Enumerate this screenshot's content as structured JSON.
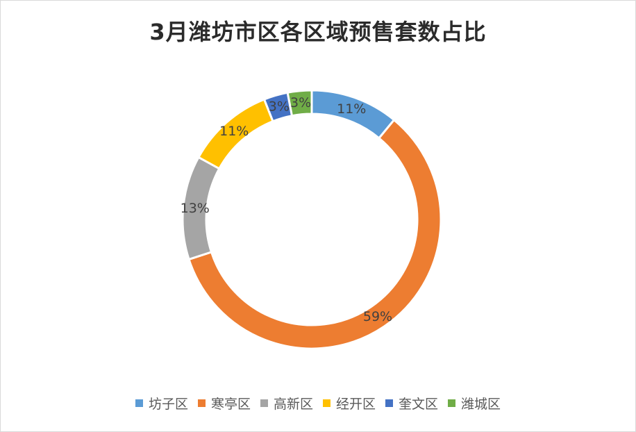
{
  "chart_data": {
    "type": "pie",
    "variant": "doughnut",
    "title": "3月潍坊市区各区域预售套数占比",
    "slices": [
      {
        "name": "坊子区",
        "value": 11,
        "label": "11%",
        "color": "#5b9bd5"
      },
      {
        "name": "寒亭区",
        "value": 59,
        "label": "59%",
        "color": "#ed7d31"
      },
      {
        "name": "高新区",
        "value": 13,
        "label": "13%",
        "color": "#a5a5a5"
      },
      {
        "name": "经开区",
        "value": 11,
        "label": "11%",
        "color": "#ffc000"
      },
      {
        "name": "奎文区",
        "value": 3,
        "label": "3%",
        "color": "#4472c4"
      },
      {
        "name": "潍城区",
        "value": 3,
        "label": "3%",
        "color": "#70ad47"
      }
    ],
    "legend_position": "bottom",
    "start_angle_deg": 0,
    "direction": "clockwise"
  }
}
